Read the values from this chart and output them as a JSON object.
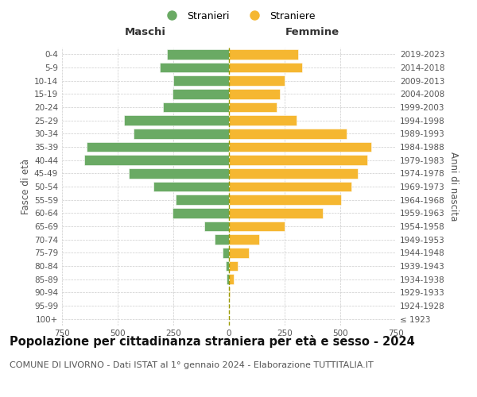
{
  "age_groups": [
    "100+",
    "95-99",
    "90-94",
    "85-89",
    "80-84",
    "75-79",
    "70-74",
    "65-69",
    "60-64",
    "55-59",
    "50-54",
    "45-49",
    "40-44",
    "35-39",
    "30-34",
    "25-29",
    "20-24",
    "15-19",
    "10-14",
    "5-9",
    "0-4"
  ],
  "birth_years": [
    "≤ 1923",
    "1924-1928",
    "1929-1933",
    "1934-1938",
    "1939-1943",
    "1944-1948",
    "1949-1953",
    "1954-1958",
    "1959-1963",
    "1964-1968",
    "1969-1973",
    "1974-1978",
    "1979-1983",
    "1984-1988",
    "1989-1993",
    "1994-1998",
    "1999-2003",
    "2004-2008",
    "2009-2013",
    "2014-2018",
    "2019-2023"
  ],
  "maschi": [
    0,
    0,
    0,
    10,
    15,
    30,
    65,
    110,
    255,
    240,
    340,
    450,
    650,
    640,
    430,
    470,
    295,
    255,
    250,
    310,
    280
  ],
  "femmine": [
    0,
    0,
    5,
    20,
    40,
    90,
    135,
    250,
    420,
    505,
    550,
    580,
    620,
    640,
    530,
    305,
    215,
    230,
    250,
    330,
    310
  ],
  "maschi_color": "#6aaa64",
  "femmine_color": "#f5b731",
  "dashed_line_color": "#999900",
  "background_color": "#ffffff",
  "grid_color": "#cccccc",
  "title": "Popolazione per cittadinanza straniera per età e sesso - 2024",
  "subtitle": "COMUNE DI LIVORNO - Dati ISTAT al 1° gennaio 2024 - Elaborazione TUTTITALIA.IT",
  "left_label": "Maschi",
  "right_label": "Femmine",
  "ylabel_left": "Fasce di età",
  "ylabel_right": "Anni di nascita",
  "legend_maschi": "Stranieri",
  "legend_femmine": "Straniere",
  "xlim": 750,
  "title_fontsize": 10.5,
  "subtitle_fontsize": 8
}
